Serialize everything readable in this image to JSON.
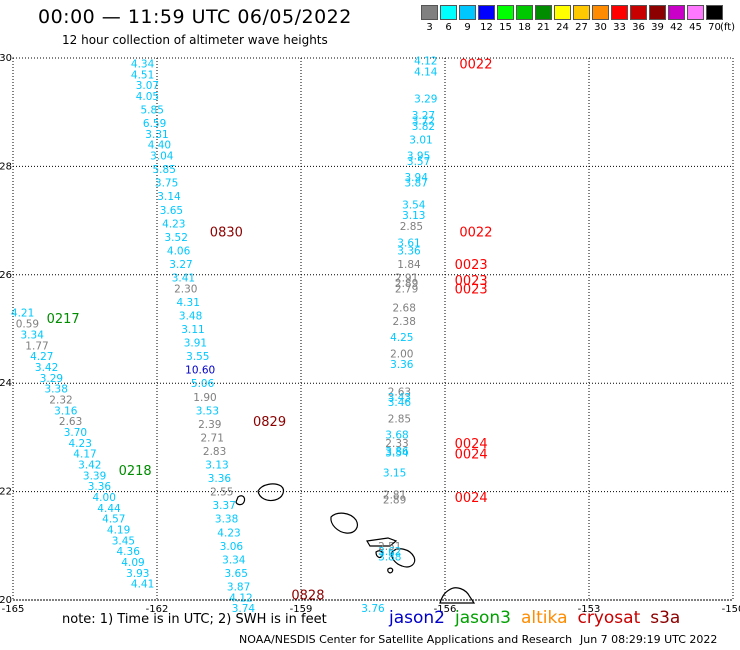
{
  "header": {
    "title": "00:00 — 11:59 UTC 06/05/2022",
    "subtitle": "12 hour collection of altimeter wave heights"
  },
  "legend": {
    "unit": "(ft)",
    "items": [
      {
        "label": "3",
        "color": "#808080"
      },
      {
        "label": "6",
        "color": "#00ffff"
      },
      {
        "label": "9",
        "color": "#00c8ff"
      },
      {
        "label": "12",
        "color": "#0000ff"
      },
      {
        "label": "15",
        "color": "#00ff00"
      },
      {
        "label": "18",
        "color": "#00c800"
      },
      {
        "label": "21",
        "color": "#008c00"
      },
      {
        "label": "24",
        "color": "#ffff00"
      },
      {
        "label": "27",
        "color": "#ffc800"
      },
      {
        "label": "30",
        "color": "#ff8c00"
      },
      {
        "label": "33",
        "color": "#ff0000"
      },
      {
        "label": "36",
        "color": "#c80000"
      },
      {
        "label": "39",
        "color": "#8c0000"
      },
      {
        "label": "42",
        "color": "#c800c8"
      },
      {
        "label": "45",
        "color": "#ff78ff"
      },
      {
        "label": "70",
        "color": "#000000"
      }
    ]
  },
  "map": {
    "lon_range": [
      -165,
      -150
    ],
    "lat_range": [
      20,
      30
    ],
    "lon_ticks": [
      "-165",
      "-162",
      "-159",
      "-156",
      "-153",
      "-150"
    ],
    "lat_ticks": [
      "30",
      "28",
      "26",
      "24",
      "22",
      "20"
    ],
    "track_time_labels": [
      {
        "text": "0022",
        "lon": -155.7,
        "lat": 29.9,
        "color": "#ff0000"
      },
      {
        "text": "0830",
        "lon": -160.9,
        "lat": 26.8,
        "color": "#8c0000"
      },
      {
        "text": "0022",
        "lon": -155.7,
        "lat": 26.8,
        "color": "#ff0000"
      },
      {
        "text": "0023",
        "lon": -155.8,
        "lat": 26.2,
        "color": "#ff0000"
      },
      {
        "text": "0023",
        "lon": -155.8,
        "lat": 25.9,
        "color": "#ff0000"
      },
      {
        "text": "0023",
        "lon": -155.8,
        "lat": 25.75,
        "color": "#ff0000"
      },
      {
        "text": "0217",
        "lon": -164.3,
        "lat": 25.2,
        "color": "#008c00"
      },
      {
        "text": "0829",
        "lon": -160.0,
        "lat": 23.3,
        "color": "#8c0000"
      },
      {
        "text": "0024",
        "lon": -155.8,
        "lat": 22.9,
        "color": "#ff0000"
      },
      {
        "text": "0024",
        "lon": -155.8,
        "lat": 22.7,
        "color": "#ff0000"
      },
      {
        "text": "0218",
        "lon": -162.8,
        "lat": 22.4,
        "color": "#008c00"
      },
      {
        "text": "0024",
        "lon": -155.8,
        "lat": 21.9,
        "color": "#ff0000"
      },
      {
        "text": "0828",
        "lon": -159.2,
        "lat": 20.1,
        "color": "#8c0000"
      }
    ],
    "tracks": [
      {
        "name": "cyan-track-west",
        "points": [
          {
            "v": "4.21",
            "lon": -164.8,
            "lat": 25.3,
            "c": "#00c8ff"
          },
          {
            "v": "0.59",
            "lon": -164.7,
            "lat": 25.1,
            "c": "#808080"
          },
          {
            "v": "3.34",
            "lon": -164.6,
            "lat": 24.9,
            "c": "#00c8ff"
          },
          {
            "v": "1.77",
            "lon": -164.5,
            "lat": 24.7,
            "c": "#808080"
          },
          {
            "v": "4.27",
            "lon": -164.4,
            "lat": 24.5,
            "c": "#00c8ff"
          },
          {
            "v": "3.42",
            "lon": -164.3,
            "lat": 24.3,
            "c": "#00c8ff"
          },
          {
            "v": "3.29",
            "lon": -164.2,
            "lat": 24.1,
            "c": "#00c8ff"
          },
          {
            "v": "3.38",
            "lon": -164.1,
            "lat": 23.9,
            "c": "#00c8ff"
          },
          {
            "v": "2.32",
            "lon": -164.0,
            "lat": 23.7,
            "c": "#808080"
          },
          {
            "v": "3.16",
            "lon": -163.9,
            "lat": 23.5,
            "c": "#00c8ff"
          },
          {
            "v": "2.63",
            "lon": -163.8,
            "lat": 23.3,
            "c": "#808080"
          },
          {
            "v": "3.70",
            "lon": -163.7,
            "lat": 23.1,
            "c": "#00c8ff"
          },
          {
            "v": "4.23",
            "lon": -163.6,
            "lat": 22.9,
            "c": "#00c8ff"
          },
          {
            "v": "4.17",
            "lon": -163.5,
            "lat": 22.7,
            "c": "#00c8ff"
          },
          {
            "v": "3.42",
            "lon": -163.4,
            "lat": 22.5,
            "c": "#00c8ff"
          },
          {
            "v": "3.39",
            "lon": -163.3,
            "lat": 22.3,
            "c": "#00c8ff"
          },
          {
            "v": "3.36",
            "lon": -163.2,
            "lat": 22.1,
            "c": "#00c8ff"
          },
          {
            "v": "4.00",
            "lon": -163.1,
            "lat": 21.9,
            "c": "#00c8ff"
          },
          {
            "v": "4.44",
            "lon": -163.0,
            "lat": 21.7,
            "c": "#00c8ff"
          },
          {
            "v": "4.57",
            "lon": -162.9,
            "lat": 21.5,
            "c": "#00c8ff"
          },
          {
            "v": "4.19",
            "lon": -162.8,
            "lat": 21.3,
            "c": "#00c8ff"
          },
          {
            "v": "3.45",
            "lon": -162.7,
            "lat": 21.1,
            "c": "#00c8ff"
          },
          {
            "v": "4.36",
            "lon": -162.6,
            "lat": 20.9,
            "c": "#00c8ff"
          },
          {
            "v": "4.09",
            "lon": -162.5,
            "lat": 20.7,
            "c": "#00c8ff"
          },
          {
            "v": "3.93",
            "lon": -162.4,
            "lat": 20.5,
            "c": "#00c8ff"
          },
          {
            "v": "4.41",
            "lon": -162.3,
            "lat": 20.3,
            "c": "#00c8ff"
          }
        ]
      },
      {
        "name": "cyan-track-middle",
        "points": [
          {
            "v": "4.34",
            "lon": -162.3,
            "lat": 29.9,
            "c": "#00c8ff"
          },
          {
            "v": "4.51",
            "lon": -162.3,
            "lat": 29.7,
            "c": "#00c8ff"
          },
          {
            "v": "3.07",
            "lon": -162.2,
            "lat": 29.5,
            "c": "#00c8ff"
          },
          {
            "v": "4.05",
            "lon": -162.2,
            "lat": 29.3,
            "c": "#00c8ff"
          },
          {
            "v": "5.85",
            "lon": -162.1,
            "lat": 29.05,
            "c": "#00c8ff"
          },
          {
            "v": "6.59",
            "lon": -162.05,
            "lat": 28.8,
            "c": "#00c8ff"
          },
          {
            "v": "3.31",
            "lon": -162.0,
            "lat": 28.6,
            "c": "#00c8ff"
          },
          {
            "v": "4.40",
            "lon": -161.95,
            "lat": 28.4,
            "c": "#00c8ff"
          },
          {
            "v": "3.04",
            "lon": -161.9,
            "lat": 28.2,
            "c": "#00c8ff"
          },
          {
            "v": "5.85",
            "lon": -161.85,
            "lat": 27.95,
            "c": "#00c8ff"
          },
          {
            "v": "3.75",
            "lon": -161.8,
            "lat": 27.7,
            "c": "#00c8ff"
          },
          {
            "v": "3.14",
            "lon": -161.75,
            "lat": 27.45,
            "c": "#00c8ff"
          },
          {
            "v": "3.65",
            "lon": -161.7,
            "lat": 27.2,
            "c": "#00c8ff"
          },
          {
            "v": "4.23",
            "lon": -161.65,
            "lat": 26.95,
            "c": "#00c8ff"
          },
          {
            "v": "3.52",
            "lon": -161.6,
            "lat": 26.7,
            "c": "#00c8ff"
          },
          {
            "v": "4.06",
            "lon": -161.55,
            "lat": 26.45,
            "c": "#00c8ff"
          },
          {
            "v": "3.27",
            "lon": -161.5,
            "lat": 26.2,
            "c": "#00c8ff"
          },
          {
            "v": "3.41",
            "lon": -161.45,
            "lat": 25.95,
            "c": "#00c8ff"
          },
          {
            "v": "2.30",
            "lon": -161.4,
            "lat": 25.75,
            "c": "#808080"
          },
          {
            "v": "4.31",
            "lon": -161.35,
            "lat": 25.5,
            "c": "#00c8ff"
          },
          {
            "v": "3.48",
            "lon": -161.3,
            "lat": 25.25,
            "c": "#00c8ff"
          },
          {
            "v": "3.11",
            "lon": -161.25,
            "lat": 25.0,
            "c": "#00c8ff"
          },
          {
            "v": "3.91",
            "lon": -161.2,
            "lat": 24.75,
            "c": "#00c8ff"
          },
          {
            "v": "3.55",
            "lon": -161.15,
            "lat": 24.5,
            "c": "#00c8ff"
          },
          {
            "v": "10.60",
            "lon": -161.1,
            "lat": 24.25,
            "c": "#0000c8"
          },
          {
            "v": "5.06",
            "lon": -161.05,
            "lat": 24.0,
            "c": "#00c8ff"
          },
          {
            "v": "1.90",
            "lon": -161.0,
            "lat": 23.75,
            "c": "#808080"
          },
          {
            "v": "3.53",
            "lon": -160.95,
            "lat": 23.5,
            "c": "#00c8ff"
          },
          {
            "v": "2.39",
            "lon": -160.9,
            "lat": 23.25,
            "c": "#808080"
          },
          {
            "v": "2.71",
            "lon": -160.85,
            "lat": 23.0,
            "c": "#808080"
          },
          {
            "v": "2.83",
            "lon": -160.8,
            "lat": 22.75,
            "c": "#808080"
          },
          {
            "v": "3.13",
            "lon": -160.75,
            "lat": 22.5,
            "c": "#00c8ff"
          },
          {
            "v": "3.36",
            "lon": -160.7,
            "lat": 22.25,
            "c": "#00c8ff"
          },
          {
            "v": "2.55",
            "lon": -160.65,
            "lat": 22.0,
            "c": "#808080"
          },
          {
            "v": "3.37",
            "lon": -160.6,
            "lat": 21.75,
            "c": "#00c8ff"
          },
          {
            "v": "3.38",
            "lon": -160.55,
            "lat": 21.5,
            "c": "#00c8ff"
          },
          {
            "v": "4.23",
            "lon": -160.5,
            "lat": 21.25,
            "c": "#00c8ff"
          },
          {
            "v": "3.06",
            "lon": -160.45,
            "lat": 21.0,
            "c": "#00c8ff"
          },
          {
            "v": "3.34",
            "lon": -160.4,
            "lat": 20.75,
            "c": "#00c8ff"
          },
          {
            "v": "3.65",
            "lon": -160.35,
            "lat": 20.5,
            "c": "#00c8ff"
          },
          {
            "v": "3.87",
            "lon": -160.3,
            "lat": 20.25,
            "c": "#00c8ff"
          },
          {
            "v": "4.12",
            "lon": -160.25,
            "lat": 20.05,
            "c": "#00c8ff"
          },
          {
            "v": "3.74",
            "lon": -160.2,
            "lat": 19.85,
            "c": "#00c8ff"
          }
        ]
      },
      {
        "name": "cyan-track-east",
        "points": [
          {
            "v": "4.12",
            "lon": -156.4,
            "lat": 29.95,
            "c": "#00c8ff"
          },
          {
            "v": "4.14",
            "lon": -156.4,
            "lat": 29.75,
            "c": "#00c8ff"
          },
          {
            "v": "3.29",
            "lon": -156.4,
            "lat": 29.25,
            "c": "#00c8ff"
          },
          {
            "v": "3.27",
            "lon": -156.45,
            "lat": 28.95,
            "c": "#00c8ff"
          },
          {
            "v": "3.72",
            "lon": -156.45,
            "lat": 28.85,
            "c": "#00c8ff"
          },
          {
            "v": "3.82",
            "lon": -156.45,
            "lat": 28.75,
            "c": "#00c8ff"
          },
          {
            "v": "3.01",
            "lon": -156.5,
            "lat": 28.5,
            "c": "#00c8ff"
          },
          {
            "v": "3.95",
            "lon": -156.55,
            "lat": 28.2,
            "c": "#00c8ff"
          },
          {
            "v": "3.57",
            "lon": -156.55,
            "lat": 28.1,
            "c": "#00c8ff"
          },
          {
            "v": "3.94",
            "lon": -156.6,
            "lat": 27.8,
            "c": "#00c8ff"
          },
          {
            "v": "3.87",
            "lon": -156.6,
            "lat": 27.7,
            "c": "#00c8ff"
          },
          {
            "v": "3.54",
            "lon": -156.65,
            "lat": 27.3,
            "c": "#00c8ff"
          },
          {
            "v": "3.13",
            "lon": -156.65,
            "lat": 27.1,
            "c": "#00c8ff"
          },
          {
            "v": "2.85",
            "lon": -156.7,
            "lat": 26.9,
            "c": "#808080"
          },
          {
            "v": "3.61",
            "lon": -156.75,
            "lat": 26.6,
            "c": "#00c8ff"
          },
          {
            "v": "3.36",
            "lon": -156.75,
            "lat": 26.45,
            "c": "#00c8ff"
          },
          {
            "v": "1.84",
            "lon": -156.75,
            "lat": 26.2,
            "c": "#808080"
          },
          {
            "v": "2.91",
            "lon": -156.8,
            "lat": 25.95,
            "c": "#808080"
          },
          {
            "v": "2.89",
            "lon": -156.8,
            "lat": 25.85,
            "c": "#808080"
          },
          {
            "v": "2.79",
            "lon": -156.8,
            "lat": 25.75,
            "c": "#808080"
          },
          {
            "v": "2.68",
            "lon": -156.85,
            "lat": 25.4,
            "c": "#808080"
          },
          {
            "v": "2.38",
            "lon": -156.85,
            "lat": 25.15,
            "c": "#808080"
          },
          {
            "v": "4.25",
            "lon": -156.9,
            "lat": 24.85,
            "c": "#00c8ff"
          },
          {
            "v": "2.00",
            "lon": -156.9,
            "lat": 24.55,
            "c": "#808080"
          },
          {
            "v": "3.36",
            "lon": -156.9,
            "lat": 24.35,
            "c": "#00c8ff"
          },
          {
            "v": "2.63",
            "lon": -156.95,
            "lat": 23.85,
            "c": "#808080"
          },
          {
            "v": "3.43",
            "lon": -156.95,
            "lat": 23.75,
            "c": "#00c8ff"
          },
          {
            "v": "3.46",
            "lon": -156.95,
            "lat": 23.65,
            "c": "#00c8ff"
          },
          {
            "v": "2.85",
            "lon": -156.95,
            "lat": 23.35,
            "c": "#808080"
          },
          {
            "v": "3.68",
            "lon": -157.0,
            "lat": 23.05,
            "c": "#00c8ff"
          },
          {
            "v": "2.33",
            "lon": -157.0,
            "lat": 22.9,
            "c": "#808080"
          },
          {
            "v": "3.86",
            "lon": -157.0,
            "lat": 22.75,
            "c": "#00c8ff"
          },
          {
            "v": "3.54",
            "lon": -157.0,
            "lat": 22.72,
            "c": "#00c8ff"
          },
          {
            "v": "3.15",
            "lon": -157.05,
            "lat": 22.35,
            "c": "#00c8ff"
          },
          {
            "v": "2.81",
            "lon": -157.05,
            "lat": 21.95,
            "c": "#808080"
          },
          {
            "v": "2.89",
            "lon": -157.05,
            "lat": 21.85,
            "c": "#808080"
          },
          {
            "v": "2.51",
            "lon": -157.15,
            "lat": 21.0,
            "c": "#808080"
          },
          {
            "v": "3.62",
            "lon": -157.15,
            "lat": 20.9,
            "c": "#00c8ff"
          },
          {
            "v": "3.88",
            "lon": -157.15,
            "lat": 20.8,
            "c": "#00c8ff"
          },
          {
            "v": "3.76",
            "lon": -157.5,
            "lat": 19.85,
            "c": "#00c8ff"
          }
        ]
      }
    ]
  },
  "footer": {
    "note": "note: 1) Time is in UTC; 2) SWH is in feet",
    "missions": [
      {
        "label": "jason2",
        "color": "#0000c8"
      },
      {
        "label": "jason3",
        "color": "#00a000"
      },
      {
        "label": "altika",
        "color": "#ff8c00"
      },
      {
        "label": "cryosat",
        "color": "#c80000"
      },
      {
        "label": "s3a",
        "color": "#8c0000"
      }
    ],
    "credit": "NOAA/NESDIS Center for Satellite Applications and Research",
    "generated": "Jun  7 08:29:19 UTC 2022"
  }
}
